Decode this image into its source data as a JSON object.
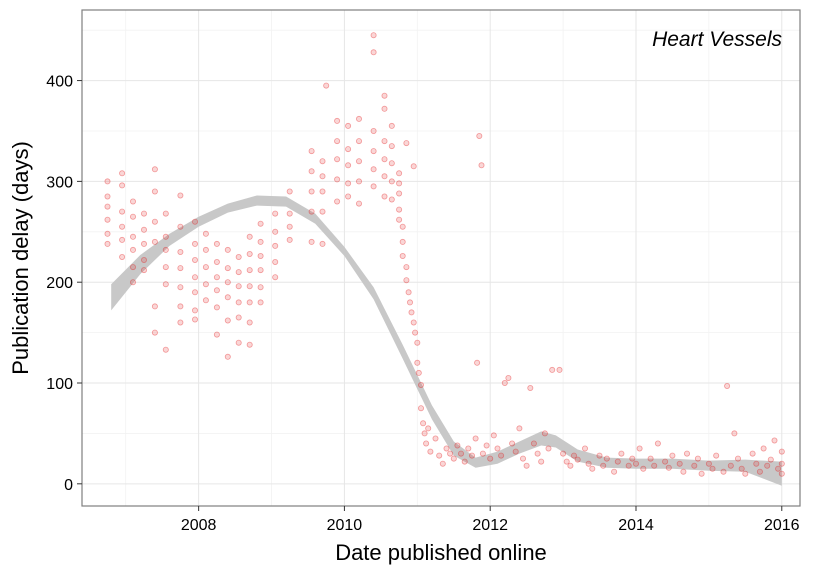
{
  "chart_data": {
    "type": "scatter",
    "annotation": "Heart Vessels",
    "xlabel": "Date published online",
    "ylabel": "Publication delay (days)",
    "xlim": [
      2006.4,
      2016.25
    ],
    "ylim": [
      -22,
      470
    ],
    "x_ticks": [
      2008,
      2010,
      2012,
      2014,
      2016
    ],
    "y_ticks": [
      0,
      100,
      200,
      300,
      400
    ],
    "grid": true,
    "point_color": "#e41a1c",
    "smooth_band_color": "#c8c8c8",
    "smooth_band": {
      "x": [
        2006.8,
        2007.2,
        2007.6,
        2008.0,
        2008.4,
        2008.8,
        2009.2,
        2009.6,
        2010.0,
        2010.4,
        2010.8,
        2011.2,
        2011.5,
        2011.8,
        2012.1,
        2012.4,
        2012.7,
        2012.9,
        2013.2,
        2013.6,
        2014.0,
        2014.5,
        2015.0,
        2015.5,
        2016.0
      ],
      "upper": [
        198,
        227,
        248,
        265,
        278,
        286,
        285,
        268,
        235,
        195,
        138,
        78,
        42,
        26,
        32,
        42,
        52,
        48,
        34,
        26,
        25,
        25,
        23,
        24,
        22
      ],
      "lower": [
        172,
        208,
        236,
        255,
        269,
        276,
        275,
        258,
        226,
        183,
        124,
        64,
        28,
        16,
        20,
        30,
        38,
        36,
        22,
        16,
        15,
        15,
        13,
        12,
        -2
      ]
    },
    "points": [
      [
        2006.75,
        300
      ],
      [
        2006.75,
        285
      ],
      [
        2006.75,
        275
      ],
      [
        2006.75,
        262
      ],
      [
        2006.75,
        248
      ],
      [
        2006.75,
        238
      ],
      [
        2006.95,
        308
      ],
      [
        2006.95,
        296
      ],
      [
        2006.95,
        270
      ],
      [
        2006.95,
        255
      ],
      [
        2006.95,
        242
      ],
      [
        2006.95,
        225
      ],
      [
        2007.1,
        280
      ],
      [
        2007.1,
        265
      ],
      [
        2007.1,
        245
      ],
      [
        2007.1,
        232
      ],
      [
        2007.1,
        215
      ],
      [
        2007.1,
        200
      ],
      [
        2007.25,
        268
      ],
      [
        2007.25,
        252
      ],
      [
        2007.25,
        238
      ],
      [
        2007.25,
        222
      ],
      [
        2007.25,
        212
      ],
      [
        2007.4,
        312
      ],
      [
        2007.4,
        290
      ],
      [
        2007.4,
        260
      ],
      [
        2007.4,
        240
      ],
      [
        2007.4,
        176
      ],
      [
        2007.4,
        150
      ],
      [
        2007.55,
        268
      ],
      [
        2007.55,
        245
      ],
      [
        2007.55,
        232
      ],
      [
        2007.55,
        215
      ],
      [
        2007.55,
        198
      ],
      [
        2007.55,
        133
      ],
      [
        2007.75,
        286
      ],
      [
        2007.75,
        255
      ],
      [
        2007.75,
        230
      ],
      [
        2007.75,
        214
      ],
      [
        2007.75,
        195
      ],
      [
        2007.75,
        176
      ],
      [
        2007.75,
        160
      ],
      [
        2007.95,
        260
      ],
      [
        2007.95,
        238
      ],
      [
        2007.95,
        222
      ],
      [
        2007.95,
        205
      ],
      [
        2007.95,
        190
      ],
      [
        2007.95,
        172
      ],
      [
        2007.95,
        163
      ],
      [
        2008.1,
        248
      ],
      [
        2008.1,
        232
      ],
      [
        2008.1,
        215
      ],
      [
        2008.1,
        198
      ],
      [
        2008.1,
        182
      ],
      [
        2008.25,
        238
      ],
      [
        2008.25,
        220
      ],
      [
        2008.25,
        205
      ],
      [
        2008.25,
        192
      ],
      [
        2008.25,
        175
      ],
      [
        2008.25,
        148
      ],
      [
        2008.4,
        232
      ],
      [
        2008.4,
        214
      ],
      [
        2008.4,
        200
      ],
      [
        2008.4,
        185
      ],
      [
        2008.4,
        162
      ],
      [
        2008.4,
        126
      ],
      [
        2008.55,
        225
      ],
      [
        2008.55,
        210
      ],
      [
        2008.55,
        196
      ],
      [
        2008.55,
        180
      ],
      [
        2008.55,
        165
      ],
      [
        2008.55,
        140
      ],
      [
        2008.7,
        245
      ],
      [
        2008.7,
        228
      ],
      [
        2008.7,
        212
      ],
      [
        2008.7,
        196
      ],
      [
        2008.7,
        180
      ],
      [
        2008.7,
        160
      ],
      [
        2008.7,
        138
      ],
      [
        2008.85,
        258
      ],
      [
        2008.85,
        240
      ],
      [
        2008.85,
        226
      ],
      [
        2008.85,
        212
      ],
      [
        2008.85,
        195
      ],
      [
        2008.85,
        180
      ],
      [
        2009.05,
        268
      ],
      [
        2009.05,
        250
      ],
      [
        2009.05,
        236
      ],
      [
        2009.05,
        220
      ],
      [
        2009.05,
        205
      ],
      [
        2009.25,
        290
      ],
      [
        2009.25,
        268
      ],
      [
        2009.25,
        255
      ],
      [
        2009.25,
        242
      ],
      [
        2009.55,
        330
      ],
      [
        2009.55,
        310
      ],
      [
        2009.55,
        290
      ],
      [
        2009.55,
        270
      ],
      [
        2009.55,
        240
      ],
      [
        2009.7,
        320
      ],
      [
        2009.7,
        305
      ],
      [
        2009.7,
        290
      ],
      [
        2009.7,
        270
      ],
      [
        2009.7,
        238
      ],
      [
        2009.75,
        395
      ],
      [
        2009.9,
        360
      ],
      [
        2009.9,
        340
      ],
      [
        2009.9,
        322
      ],
      [
        2009.9,
        302
      ],
      [
        2009.9,
        280
      ],
      [
        2010.05,
        355
      ],
      [
        2010.05,
        332
      ],
      [
        2010.05,
        316
      ],
      [
        2010.05,
        298
      ],
      [
        2010.05,
        285
      ],
      [
        2010.2,
        362
      ],
      [
        2010.2,
        340
      ],
      [
        2010.2,
        320
      ],
      [
        2010.2,
        300
      ],
      [
        2010.2,
        278
      ],
      [
        2010.4,
        445
      ],
      [
        2010.4,
        428
      ],
      [
        2010.4,
        350
      ],
      [
        2010.4,
        330
      ],
      [
        2010.4,
        312
      ],
      [
        2010.4,
        295
      ],
      [
        2010.55,
        385
      ],
      [
        2010.55,
        372
      ],
      [
        2010.55,
        340
      ],
      [
        2010.55,
        322
      ],
      [
        2010.55,
        305
      ],
      [
        2010.55,
        285
      ],
      [
        2010.65,
        355
      ],
      [
        2010.65,
        335
      ],
      [
        2010.65,
        318
      ],
      [
        2010.65,
        300
      ],
      [
        2010.65,
        282
      ],
      [
        2010.75,
        308
      ],
      [
        2010.75,
        298
      ],
      [
        2010.75,
        288
      ],
      [
        2010.75,
        272
      ],
      [
        2010.75,
        262
      ],
      [
        2010.8,
        255
      ],
      [
        2010.8,
        240
      ],
      [
        2010.8,
        226
      ],
      [
        2010.85,
        338
      ],
      [
        2010.85,
        215
      ],
      [
        2010.85,
        202
      ],
      [
        2010.88,
        190
      ],
      [
        2010.9,
        180
      ],
      [
        2010.92,
        170
      ],
      [
        2010.95,
        315
      ],
      [
        2010.95,
        160
      ],
      [
        2010.97,
        150
      ],
      [
        2011.0,
        140
      ],
      [
        2011.0,
        120
      ],
      [
        2011.02,
        110
      ],
      [
        2011.05,
        98
      ],
      [
        2011.05,
        75
      ],
      [
        2011.08,
        60
      ],
      [
        2011.1,
        50
      ],
      [
        2011.12,
        40
      ],
      [
        2011.15,
        55
      ],
      [
        2011.18,
        32
      ],
      [
        2011.25,
        45
      ],
      [
        2011.3,
        28
      ],
      [
        2011.35,
        20
      ],
      [
        2011.4,
        35
      ],
      [
        2011.45,
        30
      ],
      [
        2011.5,
        25
      ],
      [
        2011.55,
        38
      ],
      [
        2011.6,
        30
      ],
      [
        2011.65,
        22
      ],
      [
        2011.7,
        35
      ],
      [
        2011.75,
        28
      ],
      [
        2011.8,
        45
      ],
      [
        2011.82,
        120
      ],
      [
        2011.85,
        345
      ],
      [
        2011.88,
        316
      ],
      [
        2011.9,
        30
      ],
      [
        2011.95,
        38
      ],
      [
        2012.0,
        25
      ],
      [
        2012.05,
        48
      ],
      [
        2012.1,
        35
      ],
      [
        2012.15,
        28
      ],
      [
        2012.2,
        100
      ],
      [
        2012.25,
        105
      ],
      [
        2012.3,
        40
      ],
      [
        2012.35,
        32
      ],
      [
        2012.4,
        55
      ],
      [
        2012.45,
        25
      ],
      [
        2012.5,
        18
      ],
      [
        2012.55,
        95
      ],
      [
        2012.6,
        40
      ],
      [
        2012.65,
        30
      ],
      [
        2012.7,
        22
      ],
      [
        2012.75,
        50
      ],
      [
        2012.8,
        35
      ],
      [
        2012.85,
        113
      ],
      [
        2012.95,
        113
      ],
      [
        2013.0,
        30
      ],
      [
        2013.05,
        22
      ],
      [
        2013.1,
        18
      ],
      [
        2013.15,
        28
      ],
      [
        2013.2,
        24
      ],
      [
        2013.3,
        35
      ],
      [
        2013.35,
        20
      ],
      [
        2013.4,
        15
      ],
      [
        2013.5,
        28
      ],
      [
        2013.55,
        18
      ],
      [
        2013.6,
        25
      ],
      [
        2013.7,
        12
      ],
      [
        2013.75,
        22
      ],
      [
        2013.8,
        30
      ],
      [
        2013.9,
        18
      ],
      [
        2013.95,
        25
      ],
      [
        2014.0,
        20
      ],
      [
        2014.05,
        35
      ],
      [
        2014.1,
        15
      ],
      [
        2014.2,
        25
      ],
      [
        2014.25,
        18
      ],
      [
        2014.3,
        40
      ],
      [
        2014.4,
        22
      ],
      [
        2014.45,
        16
      ],
      [
        2014.5,
        28
      ],
      [
        2014.6,
        20
      ],
      [
        2014.65,
        12
      ],
      [
        2014.7,
        30
      ],
      [
        2014.8,
        18
      ],
      [
        2014.85,
        25
      ],
      [
        2014.9,
        10
      ],
      [
        2015.0,
        20
      ],
      [
        2015.05,
        15
      ],
      [
        2015.1,
        28
      ],
      [
        2015.2,
        12
      ],
      [
        2015.25,
        97
      ],
      [
        2015.3,
        18
      ],
      [
        2015.35,
        50
      ],
      [
        2015.4,
        25
      ],
      [
        2015.45,
        15
      ],
      [
        2015.5,
        10
      ],
      [
        2015.6,
        30
      ],
      [
        2015.65,
        20
      ],
      [
        2015.7,
        12
      ],
      [
        2015.75,
        35
      ],
      [
        2015.8,
        18
      ],
      [
        2015.85,
        24
      ],
      [
        2015.9,
        43
      ],
      [
        2015.95,
        15
      ],
      [
        2016.0,
        20
      ],
      [
        2016.0,
        10
      ],
      [
        2016.0,
        32
      ]
    ]
  }
}
